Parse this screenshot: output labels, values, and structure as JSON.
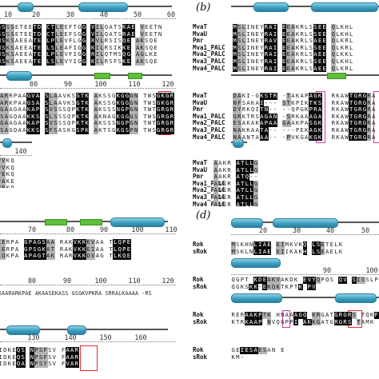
{
  "figure": {
    "panel_a": {
      "names": [],
      "ruler_top": [
        "10",
        "20",
        "30",
        "40",
        "50",
        "60"
      ],
      "ruler_mid": [
        "80",
        "90",
        "100",
        "110",
        "120"
      ],
      "ruler_bot": [
        "140"
      ],
      "block1": [
        "GSSSETEETD CTLEEFTGG VILQATSKAE VEETN",
        "GSSSETEETD CTLEEFSGG VILQATSRAE VEETN",
        "MSKSAEEATE LPLEVFLGG RVLRSISQE AKSQE",
        "MSKSAEEATE LSLEAFIGG KILRSIKKE AKSQE",
        "MSKSAEEATE LPLEVFIGG RILQTMSQG AGLKE",
        "MSKSAEEATE LSLEVYIGG KILRSFSKE AKSQE"
      ],
      "block2": [
        "KARRPAAGVA SLAAVKSGTK AKSSGKGGGN TWSGKGR",
        "KARKPAAGSA SLAAVKSGTK AKSSGKGGGN TWSGKGR",
        "KGAAGAAKAP SVSSSQPKTK AKSSSNGPGN TWTGRGR",
        "KSAGQAAKKS SLSSSQPKTK AKNAGKGGGS TWSGRGR",
        "KGAAGAAKAP SVSSSQPKTK AKSSSNGPGN TWTGRGR",
        "KSAGQAAKKS SFSASKGSPK AKTSGKGSPN TWSGRGR"
      ],
      "block3": [
        "PVKQ",
        "PVKQ",
        "PEKQ",
        "PAKE",
        "PEKQ",
        "PEKQ"
      ]
    },
    "panel_b": {
      "letter": "(b)",
      "names": [
        "MvaT",
        "MvaU",
        "Pmr",
        "Mva1_PALC",
        "Mva2_PALC",
        "Mva3_PALC",
        "Mva4_PALC"
      ],
      "block1": [
        "MSLINEYRAI EEAKRLSSEE QLKHL",
        "MSLINEYRAI EEAKRLSSEE QLKHL",
        "MSLINEYRAV EEAKRLSAEE QLKRL",
        "MSLINEYRAI EEAKRLSSEE QLKRL",
        "MSLINEYRAI EEAKRLSAEE QLKKL",
        "MSLINEYRAI EEAKRLSSEE QLKHL",
        "MSLINEYRAI EEAKRLSAEE QLKRL"
      ],
      "block2": [
        "DAKI-GKSTR -TAKAPAGK  RKAWTGRGRA",
        "NFSAKAI--- STKPIKTKS  RKAWTGRGRA",
        "DYRKQITN-- --QPGKPRA  RKAWTGRGRA",
        "QRKTRSAGAN -SRKAAAGA  RKAWTGRGRA",
        "ESAKAKAPAA GAAKPASGK  RKAWTGRGRA",
        "NAKKAATA-- ---PEKAGK  RKAWTGRGRA",
        "NAANTAAA-- -PVKGAKGK  RKAWTGRGRA"
      ],
      "block3": [
        "AAKR ATLLG",
        "AAKR ATLLG",
        "AAKR ATQ--",
        "AAKR ATLLG",
        "AAKR ATLLG",
        "AAKR ATLLG",
        "AAKR ATLLG"
      ]
    },
    "panel_c": {
      "ruler_top": [
        "70",
        "80",
        "90",
        "100",
        "110"
      ],
      "ruler_mid": [
        "80",
        "90",
        "100",
        "110",
        "120"
      ],
      "ruler_bot": [
        "130",
        "140",
        "150",
        "160"
      ],
      "block1": [
        "KERPA GPAGSAA RAKVKKEVAA TLQPE",
        "KERPA GPSGKAT RAKVKKEIAA TLQPE",
        "KQKPA APAGTAK RARVKKDVAG TLKQE"
      ],
      "mid_line": "KAARARKPAE AKAASEKASS GSGKVPKRA SRRALKAAAA -RS",
      "block3": [
        "IDKEQS NPSFSV FAAR",
        "IDKEQS NPSFSV FAAR",
        "IDKEQA NPSYSV FVAR"
      ]
    },
    "panel_d": {
      "letter": "(d)",
      "names": [
        "Rok",
        "sRok"
      ],
      "ruler_top": [
        "20",
        "30",
        "40",
        "50"
      ],
      "ruler_mid": [
        "90",
        "100"
      ],
      "block1": [
        "MSKHNLIAE EIMKVKQ LSETELK",
        "MSKLNLIAE EIIKAKH LSEAELK"
      ],
      "block2": [
        "QGPT KDEAKVAKDK EVYQPQS QV SISSLPAGI",
        "QGKSKK-EKQKTKPTK PV"
      ],
      "block3": [
        "RERAAKPTK HNAAAGQ KRGATGRGRS TQKF",
        "KTRKAAP NVQGPPI AKKGATGRGRS TAMK"
      ],
      "block4": [
        "GEIESAESAN E",
        "KM-"
      ]
    }
  },
  "colors": {
    "helix": "#3a9fc0",
    "strand": "#5fbf3a",
    "box_red": "#e03030",
    "box_magenta": "#d23aa2"
  }
}
